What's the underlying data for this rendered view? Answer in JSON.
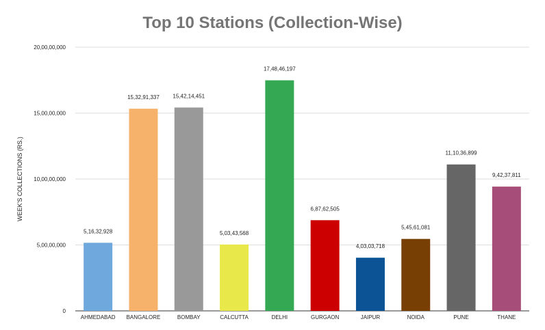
{
  "chart_data": {
    "type": "bar",
    "title": "Top 10 Stations (Collection-Wise)",
    "xlabel": "",
    "ylabel": "WEEK'S COLLECTIONS (RS.)",
    "categories": [
      "AHMEDABAD",
      "BANGALORE",
      "BOMBAY",
      "CALCUTTA",
      "DELHI",
      "GURGAON",
      "JAIPUR",
      "NOIDA",
      "PUNE",
      "THANE"
    ],
    "values": [
      51632928,
      153291337,
      154214451,
      50343568,
      174846197,
      68762505,
      40303718,
      54561081,
      111036899,
      94237811
    ],
    "value_labels": [
      "5,16,32,928",
      "15,32,91,337",
      "15,42,14,451",
      "5,03,43,568",
      "17,48,46,197",
      "6,87,62,505",
      "4,03,03,718",
      "5,45,61,081",
      "11,10,36,899",
      "9,42,37,811"
    ],
    "colors": [
      "#6fa8dc",
      "#f6b26b",
      "#999999",
      "#e8e84a",
      "#34a853",
      "#cc0000",
      "#0b5394",
      "#783f04",
      "#666666",
      "#a64d79"
    ],
    "ylim": [
      0,
      200000000
    ],
    "yticks": [
      0,
      50000000,
      100000000,
      150000000,
      200000000
    ],
    "ytick_labels": [
      "0",
      "5,00,00,000",
      "10,00,00,000",
      "15,00,00,000",
      "20,00,00,000"
    ],
    "grid": true,
    "legend": "none"
  }
}
